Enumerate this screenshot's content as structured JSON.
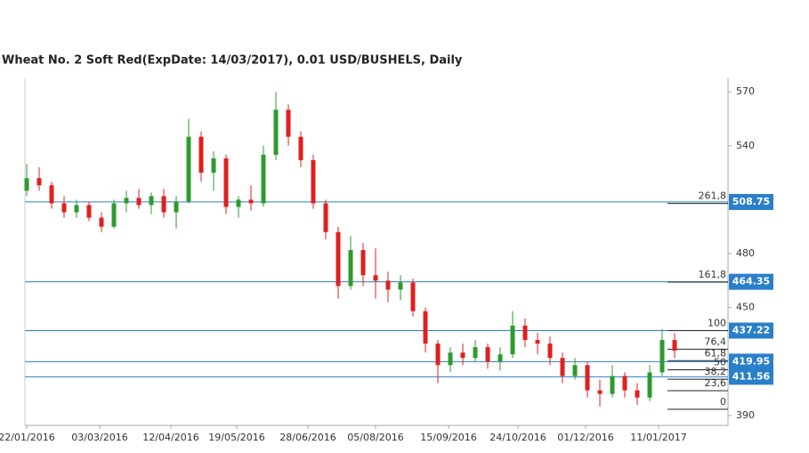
{
  "chart_data": {
    "type": "candlestick",
    "title": "Wheat  No. 2 Soft Red(ExpDate: 14/03/2017), 0.01 USD/BUSHELS, Daily",
    "x": [
      "22/01/2016",
      "29/01/2016",
      "05/02/2016",
      "12/02/2016",
      "19/02/2016",
      "26/02/2016",
      "04/03/2016",
      "11/03/2016",
      "18/03/2016",
      "25/03/2016",
      "01/04/2016",
      "08/04/2016",
      "15/04/2016",
      "22/04/2016",
      "29/04/2016",
      "06/05/2016",
      "13/05/2016",
      "20/05/2016",
      "27/05/2016",
      "03/06/2016",
      "10/06/2016",
      "17/06/2016",
      "24/06/2016",
      "01/07/2016",
      "08/07/2016",
      "15/07/2016",
      "22/07/2016",
      "29/07/2016",
      "05/08/2016",
      "12/08/2016",
      "19/08/2016",
      "26/08/2016",
      "02/09/2016",
      "09/09/2016",
      "16/09/2016",
      "23/09/2016",
      "30/09/2016",
      "07/10/2016",
      "14/10/2016",
      "21/10/2016",
      "28/10/2016",
      "04/11/2016",
      "11/11/2016",
      "18/11/2016",
      "25/11/2016",
      "02/12/2016",
      "09/12/2016",
      "16/12/2016",
      "23/12/2016",
      "30/12/2016",
      "06/01/2017",
      "13/01/2017",
      "20/01/2017"
    ],
    "open": [
      515,
      522,
      518,
      508,
      503,
      507,
      500,
      495,
      508,
      511,
      507,
      512,
      503,
      509,
      545,
      525,
      533,
      506,
      510,
      508,
      535,
      560,
      545,
      532,
      508,
      492,
      462,
      482,
      468,
      465,
      460,
      464,
      448,
      430,
      418,
      425,
      422,
      428,
      420,
      424,
      440,
      432,
      430,
      422,
      412,
      418,
      404,
      402,
      412,
      404,
      400,
      414,
      432
    ],
    "high": [
      530,
      528,
      520,
      512,
      510,
      509,
      503,
      510,
      515,
      516,
      514,
      516,
      512,
      555,
      548,
      537,
      535,
      512,
      518,
      540,
      570,
      563,
      548,
      535,
      510,
      495,
      490,
      486,
      483,
      470,
      468,
      466,
      450,
      432,
      428,
      430,
      432,
      430,
      428,
      448,
      444,
      436,
      434,
      425,
      422,
      420,
      410,
      418,
      414,
      408,
      418,
      438,
      436
    ],
    "low": [
      512,
      515,
      505,
      500,
      500,
      498,
      492,
      494,
      503,
      505,
      502,
      500,
      494,
      508,
      520,
      515,
      502,
      500,
      504,
      506,
      532,
      540,
      528,
      505,
      488,
      455,
      460,
      462,
      455,
      453,
      454,
      445,
      425,
      408,
      414,
      418,
      420,
      416,
      415,
      422,
      428,
      424,
      418,
      408,
      410,
      400,
      395,
      400,
      400,
      396,
      398,
      412,
      422
    ],
    "close": [
      522,
      518,
      508,
      503,
      507,
      500,
      495,
      508,
      511,
      507,
      512,
      503,
      509,
      545,
      525,
      533,
      506,
      510,
      508,
      535,
      560,
      545,
      532,
      508,
      492,
      462,
      482,
      468,
      465,
      460,
      464,
      448,
      430,
      418,
      425,
      422,
      428,
      420,
      424,
      440,
      432,
      430,
      422,
      412,
      418,
      404,
      402,
      412,
      404,
      400,
      414,
      432,
      426
    ],
    "up_color": "#2e9a2e",
    "down_color": "#e01f1f",
    "xlim": [
      "21/01/2016",
      "19/02/2017"
    ],
    "xticks": [
      "22/01/2016",
      "03/03/2016",
      "12/04/2016",
      "19/05/2016",
      "28/06/2016",
      "05/08/2016",
      "15/09/2016",
      "24/10/2016",
      "01/12/2016",
      "11/01/2017"
    ],
    "ylim": [
      384.5,
      577.5
    ],
    "yticks": [
      390,
      450,
      480,
      540,
      570
    ],
    "levels": [
      508.75,
      464.35,
      437.22,
      419.95,
      411.56
    ],
    "level_color": "#2a7fc9",
    "fib_levels": [
      {
        "label": "261,8",
        "price": 507.9
      },
      {
        "label": "161,8",
        "price": 464.2
      },
      {
        "label": "100",
        "price": 437.2
      },
      {
        "label": "76,4",
        "price": 426.9
      },
      {
        "label": "61,8",
        "price": 420.5
      },
      {
        "label": "50",
        "price": 415.4
      },
      {
        "label": "38,2",
        "price": 410.2
      },
      {
        "label": "23,6",
        "price": 403.8
      },
      {
        "label": "0",
        "price": 393.5
      }
    ]
  }
}
